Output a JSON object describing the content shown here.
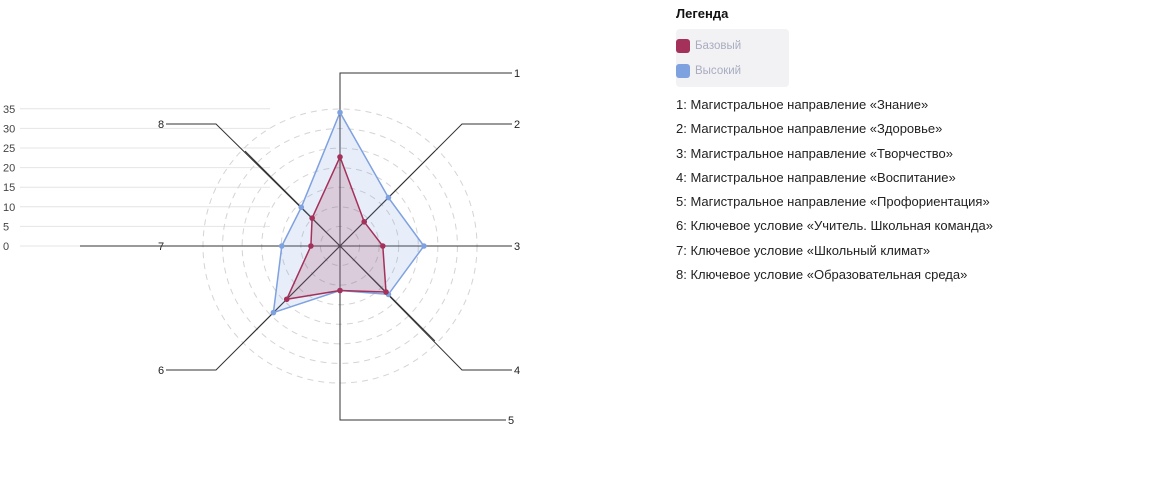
{
  "legend": {
    "title": "Легенда",
    "series": [
      {
        "name": "Базовый",
        "color": "#a3315a"
      },
      {
        "name": "Высокий",
        "color": "#7ea1e0"
      }
    ],
    "descriptions": [
      "1: Магистральное направление «Знание»",
      "2: Магистральное направление «Здоровье»",
      "3: Магистральное направление «Творчество»",
      "4: Магистральное направление «Воспитание»",
      "5: Магистральное направление «Профориентация»",
      "6: Ключевое условие «Учитель. Школьная команда»",
      "7: Ключевое условие «Школьный климат»",
      "8: Ключевое условие «Образовательная среда»"
    ]
  },
  "chart_data": {
    "type": "radar",
    "categories": [
      "1",
      "2",
      "3",
      "4",
      "5",
      "6",
      "7",
      "8"
    ],
    "scale_ticks": [
      0,
      5,
      10,
      15,
      20,
      25,
      30,
      35
    ],
    "rmax": 40,
    "grid": true,
    "legend_position": "right",
    "series": [
      {
        "name": "Базовый",
        "color": "#a3315a",
        "values": [
          26,
          10,
          12.5,
          19,
          13,
          22,
          8.5,
          11.5
        ]
      },
      {
        "name": "Высокий",
        "color": "#7ea1e0",
        "values": [
          39,
          20,
          24.5,
          20,
          13,
          27.5,
          17,
          16
        ]
      }
    ]
  }
}
